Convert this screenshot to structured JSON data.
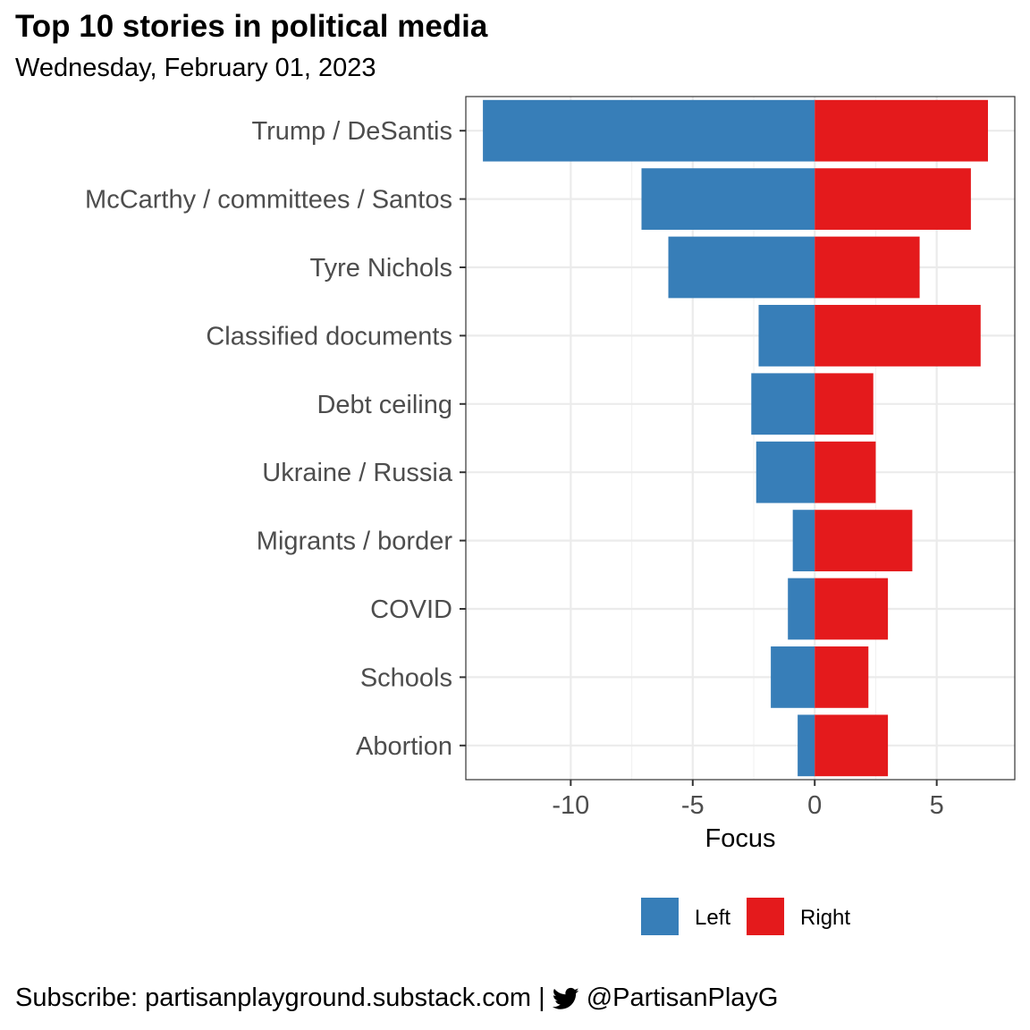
{
  "title": "Top 10 stories in political media",
  "subtitle": "Wednesday, February 01, 2023",
  "footer": {
    "subscribe_text": "Subscribe: partisanplayground.substack.com |",
    "twitter_icon": "twitter-bird-icon",
    "handle": "@PartisanPlayG"
  },
  "chart_data": {
    "type": "bar",
    "orientation": "horizontal-diverging",
    "xlabel": "Focus",
    "ylabel": "",
    "xlim": [
      -14.3,
      8.2
    ],
    "xticks": [
      -10,
      -5,
      0,
      5
    ],
    "xtick_labels": [
      "-10",
      "-5",
      "0",
      "5"
    ],
    "grid": true,
    "legend_position": "bottom",
    "categories": [
      "Trump / DeSantis",
      "McCarthy / committees / Santos",
      "Tyre Nichols",
      "Classified documents",
      "Debt ceiling",
      "Ukraine / Russia",
      "Migrants / border",
      "COVID",
      "Schools",
      "Abortion"
    ],
    "series": [
      {
        "name": "Left",
        "color": "#377eb8",
        "values": [
          -13.6,
          -7.1,
          -6.0,
          -2.3,
          -2.6,
          -2.4,
          -0.9,
          -1.1,
          -1.8,
          -0.7
        ]
      },
      {
        "name": "Right",
        "color": "#e41a1c",
        "values": [
          7.1,
          6.4,
          4.3,
          6.8,
          2.4,
          2.5,
          4.0,
          3.0,
          2.2,
          3.0
        ]
      }
    ]
  }
}
